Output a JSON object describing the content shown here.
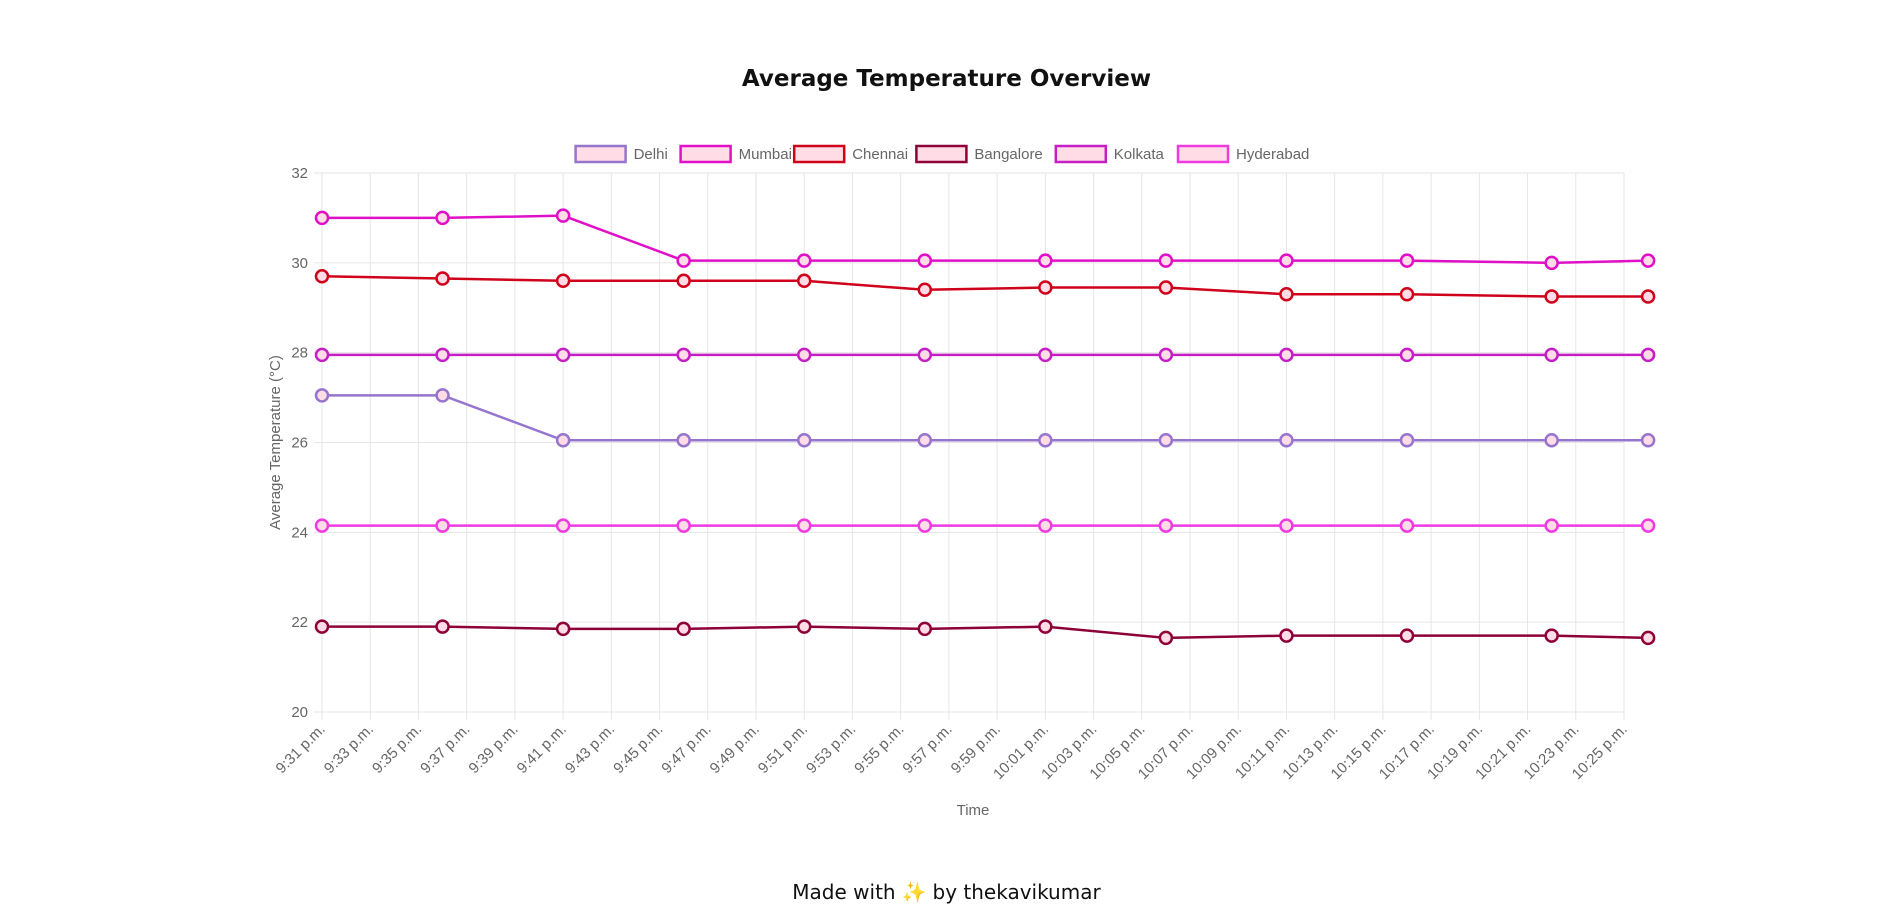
{
  "page": {
    "title": "Average Temperature Overview",
    "footer": {
      "prefix": "Made with",
      "emoji": "✨",
      "suffix": "by thekavikumar"
    }
  },
  "colors": {
    "grid": "#e6e6e6",
    "tick_text": "#666666",
    "legend_fill": "#ffdce6"
  },
  "chart_data": {
    "type": "line",
    "title": "Average Temperature Overview",
    "xlabel": "Time",
    "ylabel": "Average Temperature (°C)",
    "ylim": [
      20,
      32
    ],
    "yticks": [
      20,
      22,
      24,
      26,
      28,
      30,
      32
    ],
    "grid": true,
    "legend_position": "top-center",
    "x_ticks": [
      "9:31 p.m.",
      "9:33 p.m.",
      "9:35 p.m.",
      "9:37 p.m.",
      "9:39 p.m.",
      "9:41 p.m.",
      "9:43 p.m.",
      "9:45 p.m.",
      "9:47 p.m.",
      "9:49 p.m.",
      "9:51 p.m.",
      "9:53 p.m.",
      "9:55 p.m.",
      "9:57 p.m.",
      "9:59 p.m.",
      "10:01 p.m.",
      "10:03 p.m.",
      "10:05 p.m.",
      "10:07 p.m.",
      "10:09 p.m.",
      "10:11 p.m.",
      "10:13 p.m.",
      "10:15 p.m.",
      "10:17 p.m.",
      "10:19 p.m.",
      "10:21 p.m.",
      "10:23 p.m.",
      "10:25 p.m."
    ],
    "x_minutes": [
      0,
      5,
      10,
      15,
      20,
      25,
      30,
      35,
      40,
      45,
      51,
      55
    ],
    "x_start_label": "9:31 p.m.",
    "series": [
      {
        "name": "Delhi",
        "color": "#9575cd",
        "values": [
          27.05,
          27.05,
          26.05,
          26.05,
          26.05,
          26.05,
          26.05,
          26.05,
          26.05,
          26.05,
          26.05,
          26.05
        ]
      },
      {
        "name": "Mumbai",
        "color": "#e010c8",
        "values": [
          31.0,
          31.0,
          31.05,
          30.05,
          30.05,
          30.05,
          30.05,
          30.05,
          30.05,
          30.05,
          30.0,
          30.05
        ]
      },
      {
        "name": "Chennai",
        "color": "#d0021b",
        "values": [
          29.7,
          29.65,
          29.6,
          29.6,
          29.6,
          29.4,
          29.45,
          29.45,
          29.3,
          29.3,
          29.25,
          29.25
        ]
      },
      {
        "name": "Bangalore",
        "color": "#8e0038",
        "values": [
          21.9,
          21.9,
          21.85,
          21.85,
          21.9,
          21.85,
          21.9,
          21.65,
          21.7,
          21.7,
          21.7,
          21.65
        ]
      },
      {
        "name": "Kolkata",
        "color": "#c41fc4",
        "values": [
          27.95,
          27.95,
          27.95,
          27.95,
          27.95,
          27.95,
          27.95,
          27.95,
          27.95,
          27.95,
          27.95,
          27.95
        ]
      },
      {
        "name": "Hyderabad",
        "color": "#ee3ae0",
        "values": [
          24.15,
          24.15,
          24.15,
          24.15,
          24.15,
          24.15,
          24.15,
          24.15,
          24.15,
          24.15,
          24.15,
          24.15
        ]
      }
    ]
  }
}
